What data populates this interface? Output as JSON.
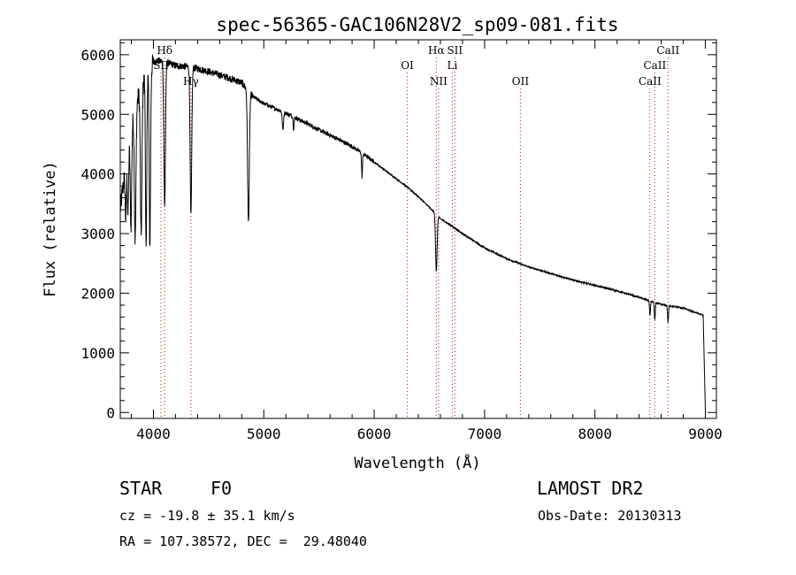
{
  "chart_data": {
    "type": "line",
    "title": "spec-56365-GAC106N28V2_sp09-081.fits",
    "xlabel": "Wavelength (Å)",
    "ylabel": "Flux (relative)",
    "xlim": [
      3700,
      9100
    ],
    "ylim": [
      -100,
      6250
    ],
    "xticks": [
      4000,
      5000,
      6000,
      7000,
      8000,
      9000
    ],
    "yticks": [
      0,
      1000,
      2000,
      3000,
      4000,
      5000,
      6000
    ],
    "grid": false,
    "continuum": [
      [
        3700,
        3400
      ],
      [
        3760,
        4300
      ],
      [
        3820,
        5000
      ],
      [
        3880,
        5400
      ],
      [
        3950,
        5750
      ],
      [
        4020,
        5900
      ],
      [
        4100,
        5880
      ],
      [
        4200,
        5820
      ],
      [
        4300,
        5800
      ],
      [
        4400,
        5770
      ],
      [
        4500,
        5720
      ],
      [
        4600,
        5660
      ],
      [
        4700,
        5600
      ],
      [
        4800,
        5530
      ],
      [
        4900,
        5300
      ],
      [
        5000,
        5180
      ],
      [
        5100,
        5100
      ],
      [
        5200,
        5020
      ],
      [
        5300,
        4930
      ],
      [
        5400,
        4840
      ],
      [
        5500,
        4740
      ],
      [
        5600,
        4650
      ],
      [
        5700,
        4560
      ],
      [
        5800,
        4460
      ],
      [
        5900,
        4340
      ],
      [
        6000,
        4200
      ],
      [
        6100,
        4060
      ],
      [
        6200,
        3920
      ],
      [
        6300,
        3780
      ],
      [
        6400,
        3620
      ],
      [
        6500,
        3440
      ],
      [
        6600,
        3250
      ],
      [
        6700,
        3130
      ],
      [
        6800,
        3000
      ],
      [
        6900,
        2880
      ],
      [
        7000,
        2760
      ],
      [
        7200,
        2580
      ],
      [
        7400,
        2440
      ],
      [
        7600,
        2330
      ],
      [
        7800,
        2220
      ],
      [
        8000,
        2130
      ],
      [
        8200,
        2040
      ],
      [
        8400,
        1930
      ],
      [
        8600,
        1810
      ],
      [
        8800,
        1750
      ],
      [
        8980,
        1630
      ],
      [
        9000,
        0
      ]
    ],
    "absorption_lines": [
      {
        "center": 3750,
        "depth": 900,
        "width": 8
      },
      {
        "center": 3770,
        "depth": 1100,
        "width": 8
      },
      {
        "center": 3797,
        "depth": 1600,
        "width": 9
      },
      {
        "center": 3835,
        "depth": 2200,
        "width": 10
      },
      {
        "center": 3889,
        "depth": 2500,
        "width": 10
      },
      {
        "center": 3934,
        "depth": 3000,
        "width": 8
      },
      {
        "center": 3968,
        "depth": 3000,
        "width": 9
      },
      {
        "center": 4102,
        "depth": 2400,
        "width": 10
      },
      {
        "center": 4340,
        "depth": 2500,
        "width": 10
      },
      {
        "center": 4861,
        "depth": 2200,
        "width": 11
      },
      {
        "center": 5173,
        "depth": 300,
        "width": 8
      },
      {
        "center": 5270,
        "depth": 200,
        "width": 6
      },
      {
        "center": 5890,
        "depth": 400,
        "width": 6
      },
      {
        "center": 6563,
        "depth": 950,
        "width": 10
      },
      {
        "center": 8498,
        "depth": 250,
        "width": 6
      },
      {
        "center": 8542,
        "depth": 300,
        "width": 6
      },
      {
        "center": 8662,
        "depth": 280,
        "width": 6
      }
    ],
    "line_markers": [
      {
        "label": "Hδ",
        "wavelength": 4102,
        "row": 0
      },
      {
        "label": "SII",
        "wavelength": 4069,
        "row": 1
      },
      {
        "label": "Hγ",
        "wavelength": 4340,
        "row": 2
      },
      {
        "label": "OI",
        "wavelength": 6300,
        "row": 1
      },
      {
        "label": "Hα",
        "wavelength": 6563,
        "row": 0
      },
      {
        "label": "Li",
        "wavelength": 6708,
        "row": 1
      },
      {
        "label": "NII",
        "wavelength": 6583,
        "row": 2
      },
      {
        "label": "OII",
        "wavelength": 7325,
        "row": 2
      },
      {
        "label": "SII",
        "wavelength": 6731,
        "row": 0
      },
      {
        "label": "CaII",
        "wavelength": 8662,
        "row": 0
      },
      {
        "label": "CaII",
        "wavelength": 8542,
        "row": 1
      },
      {
        "label": "CaII",
        "wavelength": 8498,
        "row": 2
      }
    ]
  },
  "info": {
    "object_class": "STAR",
    "subclass": "F0",
    "survey": "LAMOST DR2",
    "redshift": "cz = -19.8 ± 35.1 km/s",
    "obs_date": "Obs-Date: 20130313",
    "coords": "RA = 107.38572, DEC =  29.48040"
  }
}
